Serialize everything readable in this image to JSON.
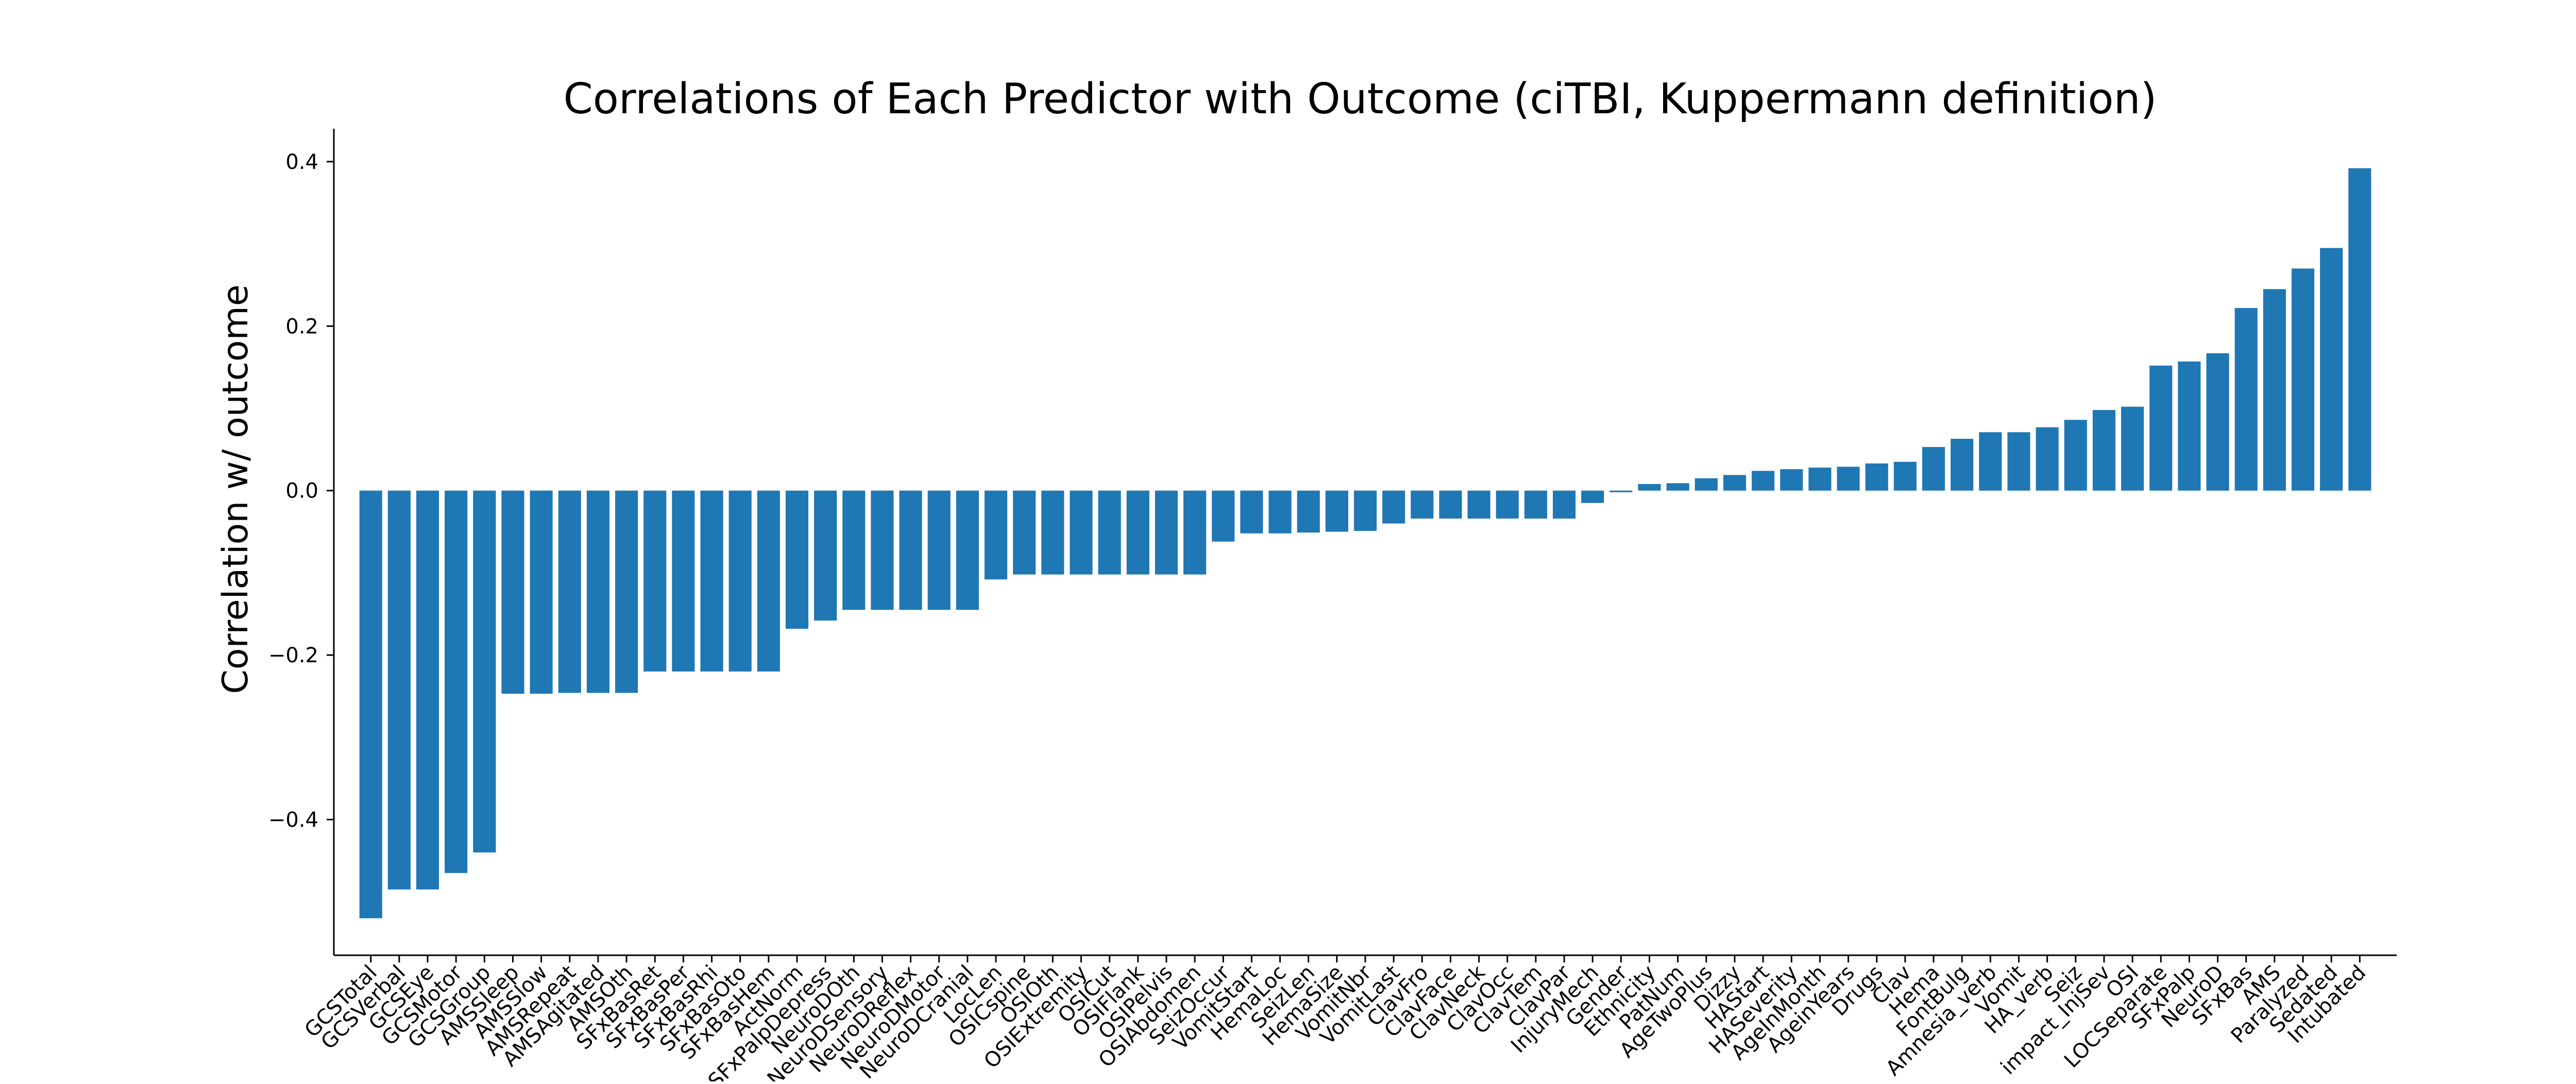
{
  "chart_data": {
    "type": "bar",
    "title": "Correlations of Each Predictor with Outcome (ciTBI, Kuppermann definition)",
    "xlabel": "",
    "ylabel": "Correlation w/ outcome",
    "ylim": [
      -0.565,
      0.44
    ],
    "yticks": [
      -0.4,
      -0.2,
      0.0,
      0.2,
      0.4
    ],
    "ytick_labels": [
      "−0.4",
      "−0.2",
      "0.0",
      "0.2",
      "0.4"
    ],
    "grid": false,
    "color": "#1f77b4",
    "categories": [
      "GCSTotal",
      "GCSVerbal",
      "GCSEye",
      "GCSMotor",
      "GCSGroup",
      "AMSSleep",
      "AMSSlow",
      "AMSRepeat",
      "AMSAgitated",
      "AMSOth",
      "SFxBasRet",
      "SFxBasPer",
      "SFxBasRhi",
      "SFxBasOto",
      "SFxBasHem",
      "ActNorm",
      "SFxPalpDepress",
      "NeuroDOth",
      "NeuroDSensory",
      "NeuroDReflex",
      "NeuroDMotor",
      "NeuroDCranial",
      "LocLen",
      "OSICspine",
      "OSIOth",
      "OSIExtremity",
      "OSICut",
      "OSIFlank",
      "OSIPelvis",
      "OSIAbdomen",
      "SeizOccur",
      "VomitStart",
      "HemaLoc",
      "SeizLen",
      "HemaSize",
      "VomitNbr",
      "VomitLast",
      "ClavFro",
      "ClavFace",
      "ClavNeck",
      "ClavOcc",
      "ClavTem",
      "ClavPar",
      "InjuryMech",
      "Gender",
      "Ethnicity",
      "PatNum",
      "AgeTwoPlus",
      "Dizzy",
      "HAStart",
      "HASeverity",
      "AgeInMonth",
      "AgeinYears",
      "Drugs",
      "Clav",
      "Hema",
      "FontBulg",
      "Amnesia_verb",
      "Vomit",
      "HA_verb",
      "Seiz",
      "impact_InjSev",
      "OSI",
      "LOCSeparate",
      "SFxPalp",
      "NeuroD",
      "SFxBas",
      "AMS",
      "Paralyzed",
      "Sedated",
      "Intubated"
    ],
    "values": [
      -0.52,
      -0.485,
      -0.485,
      -0.465,
      -0.44,
      -0.247,
      -0.247,
      -0.246,
      -0.246,
      -0.246,
      -0.22,
      -0.22,
      -0.22,
      -0.22,
      -0.22,
      -0.168,
      -0.158,
      -0.145,
      -0.145,
      -0.145,
      -0.145,
      -0.145,
      -0.108,
      -0.102,
      -0.102,
      -0.102,
      -0.102,
      -0.102,
      -0.102,
      -0.102,
      -0.062,
      -0.052,
      -0.052,
      -0.051,
      -0.05,
      -0.049,
      -0.04,
      -0.034,
      -0.034,
      -0.034,
      -0.034,
      -0.034,
      -0.034,
      -0.015,
      -0.002,
      0.008,
      0.009,
      0.015,
      0.019,
      0.024,
      0.026,
      0.028,
      0.029,
      0.033,
      0.035,
      0.053,
      0.063,
      0.071,
      0.071,
      0.077,
      0.086,
      0.098,
      0.102,
      0.152,
      0.157,
      0.167,
      0.222,
      0.245,
      0.27,
      0.295,
      0.392
    ]
  }
}
